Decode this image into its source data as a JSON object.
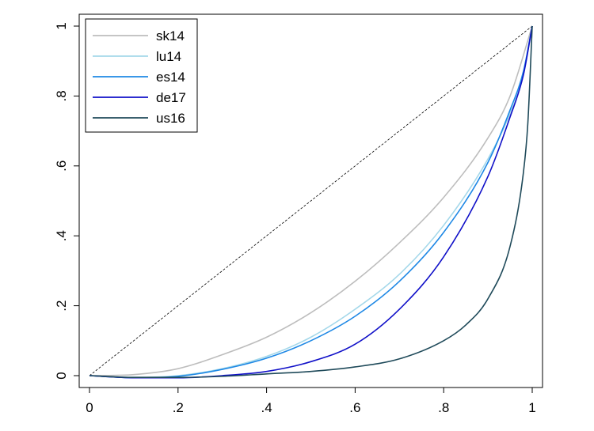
{
  "chart_data": {
    "type": "line",
    "title": "",
    "xlabel": "",
    "ylabel": "",
    "xlim": [
      0,
      1
    ],
    "ylim": [
      0,
      1
    ],
    "grid": false,
    "legend_position": "top-left",
    "x_ticks": [
      0,
      0.2,
      0.4,
      0.6,
      0.8,
      1
    ],
    "x_tick_labels": [
      "0",
      ".2",
      ".4",
      ".6",
      ".8",
      "1"
    ],
    "y_ticks": [
      0,
      0.2,
      0.4,
      0.6,
      0.8,
      1
    ],
    "y_tick_labels": [
      "0",
      ".2",
      ".4",
      ".6",
      ".8",
      "1"
    ],
    "reference_line": {
      "x": [
        0,
        1
      ],
      "y": [
        0,
        1
      ],
      "style": "dashed",
      "color": "#000000"
    },
    "series": [
      {
        "name": "sk14",
        "color": "#bdbdbd",
        "x": [
          0,
          0.1,
          0.2,
          0.3,
          0.4,
          0.5,
          0.6,
          0.7,
          0.8,
          0.9,
          0.95,
          1
        ],
        "y": [
          0,
          0.003,
          0.02,
          0.06,
          0.11,
          0.18,
          0.27,
          0.38,
          0.51,
          0.68,
          0.8,
          1
        ]
      },
      {
        "name": "lu14",
        "color": "#a4d8ea",
        "x": [
          0,
          0.1,
          0.2,
          0.3,
          0.4,
          0.5,
          0.6,
          0.7,
          0.8,
          0.9,
          0.95,
          0.98,
          1
        ],
        "y": [
          0,
          -0.005,
          0.0,
          0.02,
          0.055,
          0.11,
          0.19,
          0.29,
          0.43,
          0.62,
          0.75,
          0.86,
          1
        ]
      },
      {
        "name": "es14",
        "color": "#1e88e5",
        "x": [
          0,
          0.1,
          0.2,
          0.3,
          0.4,
          0.5,
          0.6,
          0.7,
          0.8,
          0.9,
          0.95,
          0.98,
          1
        ],
        "y": [
          0,
          -0.006,
          -0.002,
          0.018,
          0.05,
          0.1,
          0.17,
          0.27,
          0.41,
          0.61,
          0.76,
          0.87,
          1
        ]
      },
      {
        "name": "de17",
        "color": "#1010c8",
        "x": [
          0,
          0.1,
          0.2,
          0.3,
          0.4,
          0.5,
          0.6,
          0.7,
          0.8,
          0.9,
          0.95,
          0.98,
          1
        ],
        "y": [
          0,
          -0.006,
          -0.006,
          0.0,
          0.012,
          0.04,
          0.09,
          0.19,
          0.34,
          0.57,
          0.74,
          0.86,
          1
        ]
      },
      {
        "name": "us16",
        "color": "#1f4a5a",
        "x": [
          0,
          0.1,
          0.2,
          0.3,
          0.4,
          0.5,
          0.6,
          0.7,
          0.8,
          0.85,
          0.9,
          0.95,
          0.98,
          0.99,
          1
        ],
        "y": [
          0,
          -0.005,
          -0.005,
          -0.002,
          0.005,
          0.012,
          0.025,
          0.048,
          0.1,
          0.145,
          0.22,
          0.37,
          0.58,
          0.72,
          1
        ]
      }
    ]
  }
}
